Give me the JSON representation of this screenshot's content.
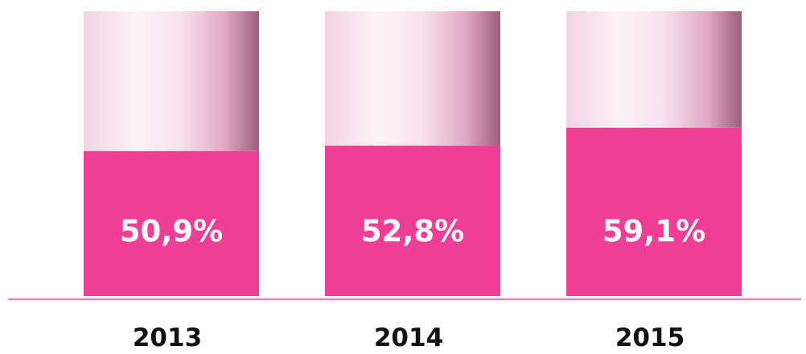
{
  "chart_data": {
    "type": "bar",
    "stacked_to_total": true,
    "categories": [
      "2013",
      "2014",
      "2015"
    ],
    "values": [
      50.9,
      52.8,
      59.1
    ],
    "value_labels": [
      "50,9%",
      "52,8%",
      "59,1%"
    ],
    "ylim": [
      0,
      100
    ],
    "grid": false,
    "legend": "none",
    "colors": {
      "fill": "#ee3e96",
      "remainder_light": "#fbe8f1",
      "remainder_mid": "#f0c8da",
      "remainder_dark": "#9d5f79",
      "baseline": "#d98fb5",
      "category_text": "#111111",
      "value_text": "#ffffff"
    }
  }
}
